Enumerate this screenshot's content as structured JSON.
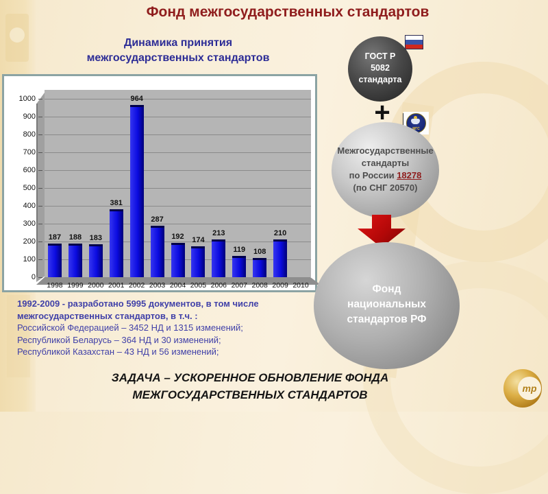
{
  "slide": {
    "title": "Фонд межгосударственных стандартов",
    "task_line1": "ЗАДАЧА – УСКОРЕННОЕ ОБНОВЛЕНИЕ ФОНДА",
    "task_line2": "МЕЖГОСУДАРСТВЕННЫХ СТАНДАРТОВ"
  },
  "chart_title": {
    "line1": "Динамика принятия",
    "line2": "межгосударственных стандартов"
  },
  "chart_data": {
    "type": "bar",
    "title": "Динамика принятия межгосударственных стандартов",
    "categories": [
      "1998",
      "1999",
      "2000",
      "2001",
      "2002",
      "2003",
      "2004",
      "2005",
      "2006",
      "2007",
      "2008",
      "2009",
      "2010"
    ],
    "values": [
      187,
      188,
      183,
      381,
      964,
      287,
      192,
      174,
      213,
      119,
      108,
      210,
      null
    ],
    "xlabel": "",
    "ylabel": "",
    "ylim": [
      0,
      1000
    ],
    "ytick_step": 100,
    "grid": true,
    "legend": "none",
    "bar_color": "#0b0be0",
    "plot_bg": "#b5b5b5",
    "grid_color": "#8a8a8a"
  },
  "summary": {
    "lines": [
      "1992-2009 - разработано 5995 документов, в том числе",
      "межгосударственных стандартов, в т.ч. :",
      "Российской Федерацией – 3452 НД и 1315 изменений;",
      "Республикой Беларусь – 364 НД и 30 изменений;",
      "Республикой Казахстан – 43 НД и 56 изменений;"
    ]
  },
  "diagram": {
    "gost": {
      "line1": "ГОСТ Р",
      "line2": "5082",
      "line3": "стандарта"
    },
    "plus": "+",
    "mgs_label": "МГС",
    "interstate": {
      "line1": "Межгосударственные",
      "line2": "стандарты",
      "line3_prefix": "по России ",
      "line3_value": "18278",
      "line4": "(по СНГ 20570)"
    },
    "fund": {
      "line1": "Фонд",
      "line2": "национальных",
      "line3": "стандартов РФ"
    }
  },
  "logo": {
    "text": "тр"
  },
  "colors": {
    "title": "#8f1d1d",
    "chart_title": "#2c2c96",
    "summary_text": "#4040a8",
    "accent_link": "#8f1d1d",
    "arrow_red": "#b30808",
    "background": "#f8edd5"
  }
}
